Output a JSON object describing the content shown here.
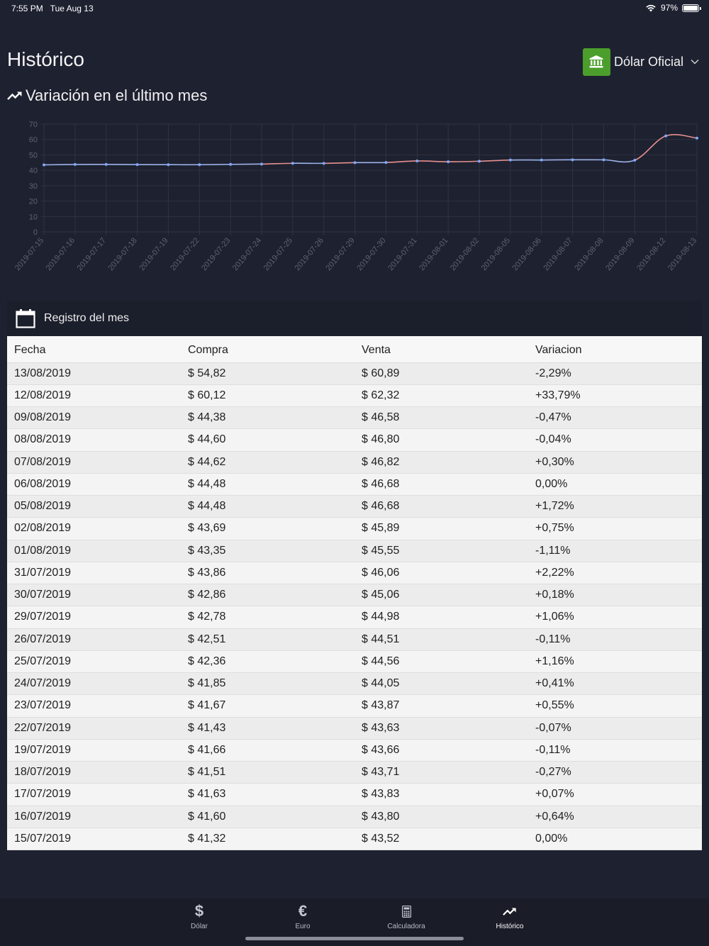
{
  "status_bar": {
    "time": "7:55 PM",
    "date": "Tue Aug 13",
    "battery": "97%"
  },
  "header": {
    "title": "Histórico",
    "selector_label": "Dólar Oficial",
    "selector_icon": "bank-icon"
  },
  "chart_section": {
    "title": "Variación en el último mes",
    "icon": "trending-up-icon"
  },
  "chart_data": {
    "type": "line",
    "x": [
      "2019-07-15",
      "2019-07-16",
      "2019-07-17",
      "2019-07-18",
      "2019-07-19",
      "2019-07-22",
      "2019-07-23",
      "2019-07-24",
      "2019-07-25",
      "2019-07-26",
      "2019-07-29",
      "2019-07-30",
      "2019-07-31",
      "2019-08-01",
      "2019-08-02",
      "2019-08-05",
      "2019-08-06",
      "2019-08-07",
      "2019-08-08",
      "2019-08-09",
      "2019-08-12",
      "2019-08-13"
    ],
    "y": [
      43.52,
      43.8,
      43.83,
      43.71,
      43.66,
      43.63,
      43.87,
      44.05,
      44.56,
      44.51,
      44.98,
      45.06,
      46.06,
      45.55,
      45.89,
      46.68,
      46.68,
      46.82,
      46.8,
      46.58,
      62.32,
      60.89
    ],
    "y_ticks": [
      "70",
      "60",
      "50",
      "40",
      "30",
      "20",
      "10",
      "0"
    ],
    "ylim": [
      0,
      70
    ],
    "colors": {
      "rising": "#e8908f",
      "point": "#7fa8ff",
      "flat": "#9db3ea",
      "grid": "#2f3342",
      "tick": "#5e6272"
    }
  },
  "registro": {
    "title": "Registro del mes",
    "columns": [
      "Fecha",
      "Compra",
      "Venta",
      "Variacion"
    ],
    "rows": [
      [
        "13/08/2019",
        "$ 54,82",
        "$ 60,89",
        "-2,29%"
      ],
      [
        "12/08/2019",
        "$ 60,12",
        "$ 62,32",
        "+33,79%"
      ],
      [
        "09/08/2019",
        "$ 44,38",
        "$ 46,58",
        "-0,47%"
      ],
      [
        "08/08/2019",
        "$ 44,60",
        "$ 46,80",
        "-0,04%"
      ],
      [
        "07/08/2019",
        "$ 44,62",
        "$ 46,82",
        "+0,30%"
      ],
      [
        "06/08/2019",
        "$ 44,48",
        "$ 46,68",
        "0,00%"
      ],
      [
        "05/08/2019",
        "$ 44,48",
        "$ 46,68",
        "+1,72%"
      ],
      [
        "02/08/2019",
        "$ 43,69",
        "$ 45,89",
        "+0,75%"
      ],
      [
        "01/08/2019",
        "$ 43,35",
        "$ 45,55",
        "-1,11%"
      ],
      [
        "31/07/2019",
        "$ 43,86",
        "$ 46,06",
        "+2,22%"
      ],
      [
        "30/07/2019",
        "$ 42,86",
        "$ 45,06",
        "+0,18%"
      ],
      [
        "29/07/2019",
        "$ 42,78",
        "$ 44,98",
        "+1,06%"
      ],
      [
        "26/07/2019",
        "$ 42,51",
        "$ 44,51",
        "-0,11%"
      ],
      [
        "25/07/2019",
        "$ 42,36",
        "$ 44,56",
        "+1,16%"
      ],
      [
        "24/07/2019",
        "$ 41,85",
        "$ 44,05",
        "+0,41%"
      ],
      [
        "23/07/2019",
        "$ 41,67",
        "$ 43,87",
        "+0,55%"
      ],
      [
        "22/07/2019",
        "$ 41,43",
        "$ 43,63",
        "-0,07%"
      ],
      [
        "19/07/2019",
        "$ 41,66",
        "$ 43,66",
        "-0,11%"
      ],
      [
        "18/07/2019",
        "$ 41,51",
        "$ 43,71",
        "-0,27%"
      ],
      [
        "17/07/2019",
        "$ 41,63",
        "$ 43,83",
        "+0,07%"
      ],
      [
        "16/07/2019",
        "$ 41,60",
        "$ 43,80",
        "+0,64%"
      ],
      [
        "15/07/2019",
        "$ 41,32",
        "$ 43,52",
        "0,00%"
      ]
    ]
  },
  "tabs": [
    {
      "label": "Dólar",
      "icon": "dollar-icon",
      "glyph": "$"
    },
    {
      "label": "Euro",
      "icon": "euro-icon",
      "glyph": "€"
    },
    {
      "label": "Calculadora",
      "icon": "calculator-icon",
      "glyph": ""
    },
    {
      "label": "Histórico",
      "icon": "trending-up-icon",
      "glyph": "",
      "active": true
    }
  ]
}
